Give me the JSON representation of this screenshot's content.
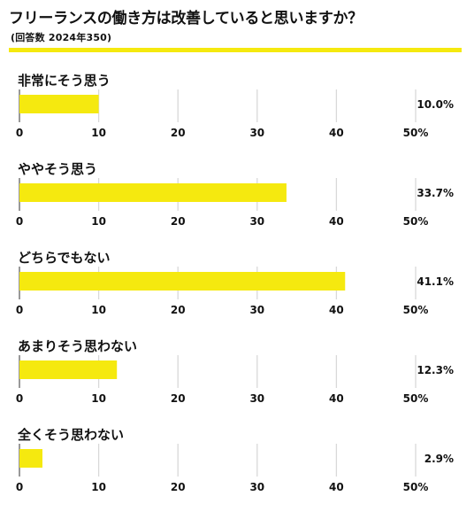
{
  "chart_data": {
    "type": "bar",
    "orientation": "horizontal",
    "title": "フリーランスの働き方は改善していると思いますか？",
    "subtitle": "(回答数 2024年350)",
    "categories": [
      "非常にそう思う",
      "ややそう思う",
      "どちらでもない",
      "あまりそう思わない",
      "全くそう思わない"
    ],
    "values": [
      10.0,
      33.7,
      41.1,
      12.3,
      2.9
    ],
    "value_labels": [
      "10.0%",
      "33.7%",
      "41.1%",
      "12.3%",
      "2.9%"
    ],
    "xlim": [
      0,
      50
    ],
    "ticks": [
      "0",
      "10",
      "20",
      "30",
      "40",
      "50%"
    ],
    "grid": true,
    "colors": {
      "bar": "#f5e90f",
      "accent": "#f5e90f",
      "grid": "#d8d8d8",
      "axis": "#555555",
      "text": "#111111"
    }
  }
}
